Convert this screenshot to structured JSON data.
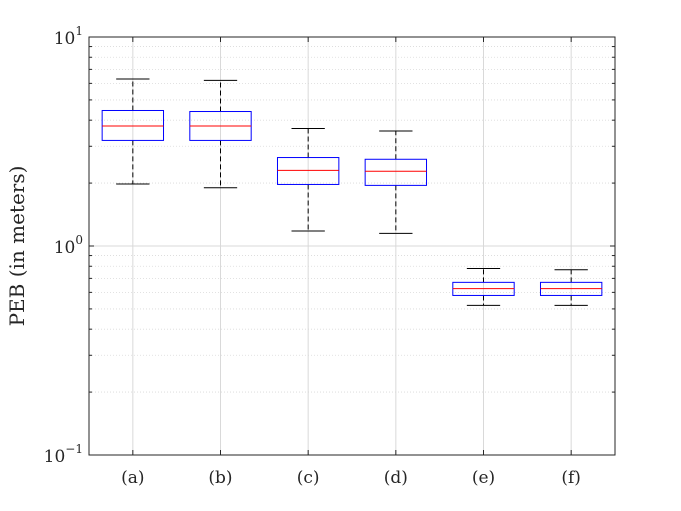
{
  "chart_data": {
    "type": "box",
    "title": "",
    "xlabel": "",
    "ylabel": "PEB (in meters)",
    "yscale": "log",
    "ylim": [
      0.1,
      10
    ],
    "grid": true,
    "colors": {
      "box": "#0000ff",
      "median": "#ff0000",
      "whisker": "#000000",
      "grid": "#d9d9d9"
    },
    "yticks": [
      {
        "value": 0.1,
        "base": "10",
        "exp": "−1"
      },
      {
        "value": 1,
        "base": "10",
        "exp": "0"
      },
      {
        "value": 10,
        "base": "10",
        "exp": "1"
      }
    ],
    "categories": [
      "(a)",
      "(b)",
      "(c)",
      "(d)",
      "(e)",
      "(f)"
    ],
    "boxes": [
      {
        "min": 1.98,
        "q1": 3.2,
        "median": 3.75,
        "q3": 4.45,
        "max": 6.3
      },
      {
        "min": 1.9,
        "q1": 3.2,
        "median": 3.75,
        "q3": 4.4,
        "max": 6.2
      },
      {
        "min": 1.18,
        "q1": 1.97,
        "median": 2.3,
        "q3": 2.65,
        "max": 3.65
      },
      {
        "min": 1.15,
        "q1": 1.95,
        "median": 2.28,
        "q3": 2.6,
        "max": 3.55
      },
      {
        "min": 0.52,
        "q1": 0.58,
        "median": 0.625,
        "q3": 0.67,
        "max": 0.78
      },
      {
        "min": 0.52,
        "q1": 0.58,
        "median": 0.625,
        "q3": 0.67,
        "max": 0.77
      }
    ]
  }
}
